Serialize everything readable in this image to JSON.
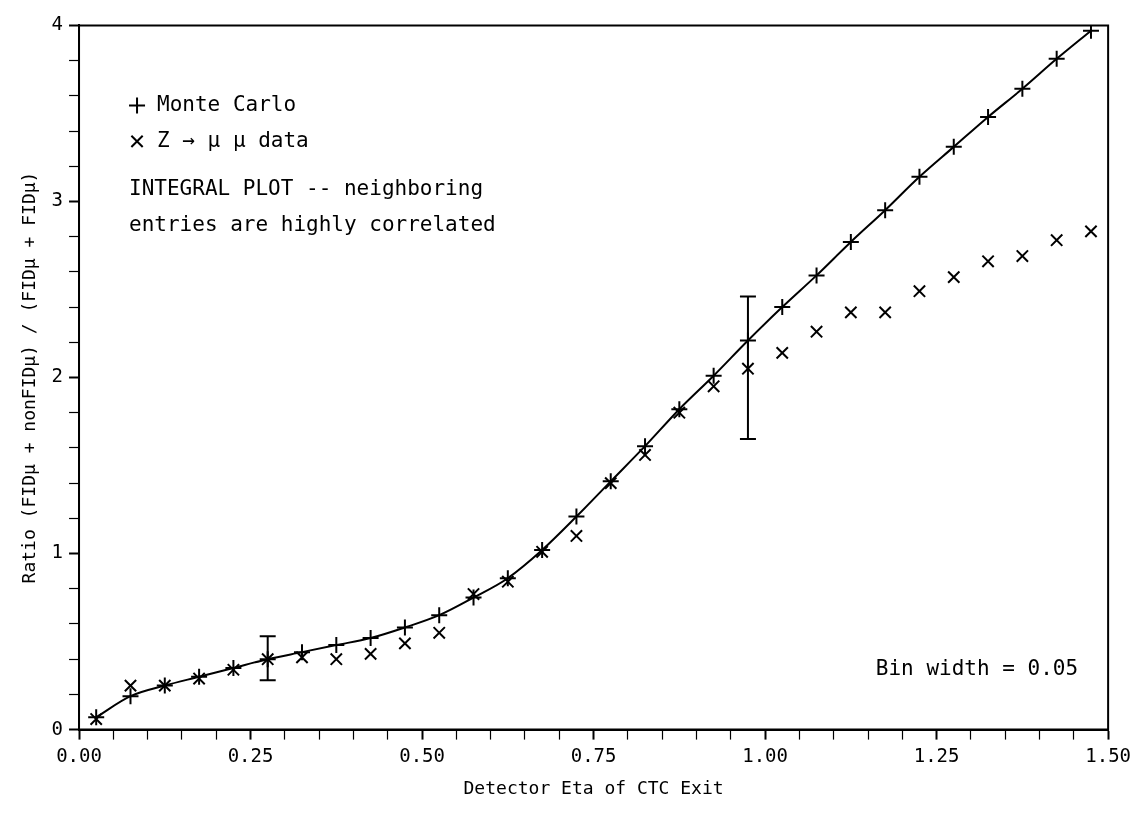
{
  "chart_data": {
    "type": "line",
    "xlabel": "Detector Eta of CTC Exit",
    "ylabel": "Ratio (FIDμ + nonFIDμ) / (FIDμ + FIDμ)",
    "x": [
      0.025,
      0.075,
      0.125,
      0.175,
      0.225,
      0.275,
      0.325,
      0.375,
      0.425,
      0.475,
      0.525,
      0.575,
      0.625,
      0.675,
      0.725,
      0.775,
      0.825,
      0.875,
      0.925,
      0.975,
      1.025,
      1.075,
      1.125,
      1.175,
      1.225,
      1.275,
      1.325,
      1.375,
      1.425,
      1.475
    ],
    "series": [
      {
        "name": "Monte Carlo",
        "type": "line",
        "color": "#000000",
        "marker": "cross",
        "line_style": "solid",
        "values": [
          0.07,
          0.19,
          0.25,
          0.3,
          0.35,
          0.4,
          0.44,
          0.48,
          0.52,
          0.58,
          0.65,
          0.75,
          0.86,
          1.02,
          1.21,
          1.41,
          1.61,
          1.82,
          2.01,
          2.21,
          2.4,
          2.58,
          2.77,
          2.95,
          3.14,
          3.31,
          3.48,
          3.64,
          3.81,
          3.97
        ]
      },
      {
        "name": "Z → μ μ data",
        "type": "scatter",
        "color": "#000000",
        "marker": "cross",
        "values": [
          0.06,
          0.25,
          0.25,
          0.29,
          0.34,
          0.4,
          0.41,
          0.4,
          0.43,
          0.49,
          0.55,
          0.77,
          0.84,
          1.01,
          1.1,
          1.4,
          1.56,
          1.8,
          1.95,
          2.05,
          2.14,
          2.26,
          2.37,
          2.37,
          2.49,
          2.57,
          2.66,
          2.69,
          2.78,
          2.83
        ],
        "errors": [
          null,
          null,
          null,
          null,
          null,
          [
            0.28,
            0.53
          ],
          null,
          null,
          null,
          null,
          null,
          null,
          null,
          null,
          null,
          null,
          null,
          null,
          null,
          [
            1.65,
            2.46
          ],
          null,
          null,
          null,
          null,
          null,
          null,
          null,
          null,
          null,
          null
        ]
      }
    ],
    "xlim": [
      0,
      1.5
    ],
    "xticks": [
      {
        "value": 0,
        "label": "0.00"
      },
      {
        "value": 0.05,
        "label": null
      },
      {
        "value": 0.1,
        "label": null
      },
      {
        "value": 0.15,
        "label": null
      },
      {
        "value": 0.2,
        "label": null
      },
      {
        "value": 0.25,
        "label": "0.25"
      },
      {
        "value": 0.3,
        "label": null
      },
      {
        "value": 0.35,
        "label": null
      },
      {
        "value": 0.4,
        "label": null
      },
      {
        "value": 0.45,
        "label": null
      },
      {
        "value": 0.5,
        "label": "0.50"
      },
      {
        "value": 0.55,
        "label": null
      },
      {
        "value": 0.6,
        "label": null
      },
      {
        "value": 0.65,
        "label": null
      },
      {
        "value": 0.7,
        "label": null
      },
      {
        "value": 0.75,
        "label": "0.75"
      },
      {
        "value": 0.8,
        "label": null
      },
      {
        "value": 0.85,
        "label": null
      },
      {
        "value": 0.9,
        "label": null
      },
      {
        "value": 0.95,
        "label": null
      },
      {
        "value": 1,
        "label": "1.00"
      },
      {
        "value": 1.05,
        "label": null
      },
      {
        "value": 1.1,
        "label": null
      },
      {
        "value": 1.15,
        "label": null
      },
      {
        "value": 1.2,
        "label": null
      },
      {
        "value": 1.25,
        "label": "1.25"
      },
      {
        "value": 1.3,
        "label": null
      },
      {
        "value": 1.35,
        "label": null
      },
      {
        "value": 1.4,
        "label": null
      },
      {
        "value": 1.45,
        "label": null
      },
      {
        "value": 1.5,
        "label": "1.50"
      }
    ],
    "ylim": [
      0,
      4
    ],
    "yticks": [
      0,
      {
        "value": 0.2,
        "label": null
      },
      {
        "value": 0.4,
        "label": null
      },
      {
        "value": 0.6,
        "label": null
      },
      {
        "value": 0.8,
        "label": null
      },
      1,
      {
        "value": 1.2,
        "label": null
      },
      {
        "value": 1.4,
        "label": null
      },
      {
        "value": 1.6,
        "label": null
      },
      {
        "value": 1.8,
        "label": null
      },
      2,
      {
        "value": 2.2,
        "label": null
      },
      {
        "value": 2.4,
        "label": null
      },
      {
        "value": 2.6,
        "label": null
      },
      {
        "value": 2.8,
        "label": null
      },
      3,
      {
        "value": 3.2,
        "label": null
      },
      {
        "value": 3.4,
        "label": null
      },
      {
        "value": 3.6,
        "label": null
      },
      {
        "value": 3.8,
        "label": null
      },
      4
    ],
    "grid": false,
    "legend": "top left",
    "annotations": [
      "INTEGRAL PLOT -- neighboring\nentries are highly correlated",
      "Bin width = 0.05"
    ]
  }
}
